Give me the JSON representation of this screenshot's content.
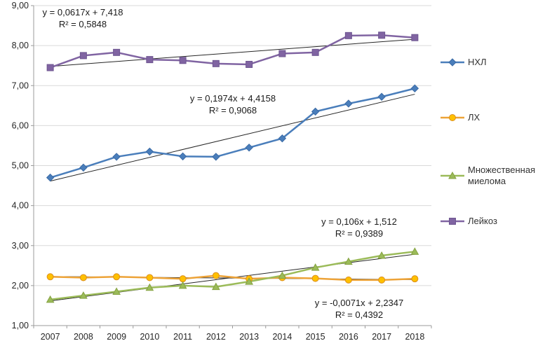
{
  "chart_data": {
    "type": "line",
    "categories": [
      "2007",
      "2008",
      "2009",
      "2010",
      "2011",
      "2012",
      "2013",
      "2014",
      "2015",
      "2016",
      "2017",
      "2018"
    ],
    "ylim": [
      1,
      9
    ],
    "ytick_step": 1,
    "ytick_labels": [
      "1,00",
      "2,00",
      "3,00",
      "4,00",
      "5,00",
      "6,00",
      "7,00",
      "8,00",
      "9,00"
    ],
    "grid": true,
    "legend_position": "right",
    "series": [
      {
        "name": "НХЛ",
        "marker": "diamond",
        "color": "#4a7ebb",
        "marker_fill": "#4a7ebb",
        "marker_stroke": "#3a6aa5",
        "values": [
          4.7,
          4.95,
          5.22,
          5.35,
          5.23,
          5.22,
          5.45,
          5.68,
          6.35,
          6.55,
          6.72,
          6.93
        ],
        "trend": {
          "slope": 0.1974,
          "intercept": 4.4158,
          "r2": 0.9068
        }
      },
      {
        "name": "ЛХ",
        "marker": "circle",
        "color": "#eda338",
        "marker_fill": "#ffc000",
        "marker_stroke": "#db8f1f",
        "values": [
          2.22,
          2.2,
          2.22,
          2.2,
          2.17,
          2.25,
          2.17,
          2.2,
          2.18,
          2.14,
          2.14,
          2.17
        ],
        "trend": {
          "slope": -0.0071,
          "intercept": 2.2347,
          "r2": 0.4392
        }
      },
      {
        "name": "Множественная миелома",
        "marker": "triangle",
        "color": "#9bbb59",
        "marker_fill": "#9bbb59",
        "marker_stroke": "#85a241",
        "values": [
          1.65,
          1.75,
          1.85,
          1.95,
          2.0,
          1.97,
          2.1,
          2.25,
          2.45,
          2.6,
          2.75,
          2.85
        ],
        "trend": {
          "slope": 0.106,
          "intercept": 1.512,
          "r2": 0.9389
        }
      },
      {
        "name": "Лейкоз",
        "marker": "square",
        "color": "#8064a2",
        "marker_fill": "#8064a2",
        "marker_stroke": "#6d5590",
        "values": [
          7.45,
          7.75,
          7.83,
          7.65,
          7.63,
          7.55,
          7.53,
          7.8,
          7.83,
          8.25,
          8.26,
          8.2
        ],
        "trend": {
          "slope": 0.0617,
          "intercept": 7.418,
          "r2": 0.5848
        }
      }
    ],
    "annotations": [
      {
        "line1": "y = 0,0617x + 7,418",
        "line2": "R² = 0,5848"
      },
      {
        "line1": "y = 0,1974x + 4,4158",
        "line2": "R² = 0,9068"
      },
      {
        "line1": "y = 0,106x + 1,512",
        "line2": "R² = 0,9389"
      },
      {
        "line1": "y = -0,0071x + 2,2347",
        "line2": "R² = 0,4392"
      }
    ]
  }
}
